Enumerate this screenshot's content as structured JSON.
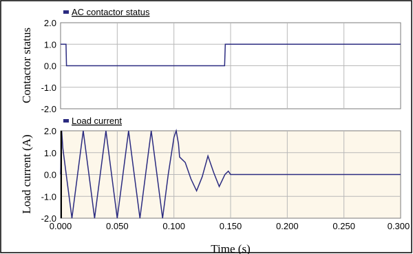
{
  "chart_data": [
    {
      "type": "line",
      "legend": "AC contactor status",
      "ylabel": "Contactor status",
      "ylim": [
        -2.0,
        2.0
      ],
      "yticks": [
        "2.0",
        "1.0",
        "0.0",
        "-1.0",
        "-2.0"
      ],
      "xlim": [
        0,
        0.3
      ],
      "series": [
        {
          "name": "AC contactor status",
          "color": "#2b2b80",
          "x": [
            0.0,
            0.0048,
            0.0052,
            0.1447,
            0.1453,
            0.3
          ],
          "y": [
            1.0,
            1.0,
            0.0,
            0.0,
            1.0,
            1.0
          ]
        }
      ]
    },
    {
      "type": "line",
      "legend": "Load current",
      "ylabel": "Load current (A)",
      "ylim": [
        -2.0,
        2.0
      ],
      "yticks": [
        "2.0",
        "1.0",
        "0.0",
        "-1.0",
        "-2.0"
      ],
      "xlim": [
        0,
        0.3
      ],
      "xlabel": "Time (s)",
      "xticks": [
        "0.000",
        "0.050",
        "0.100",
        "0.150",
        "0.200",
        "0.250",
        "0.300"
      ],
      "shaded_region": [
        0.0,
        0.3
      ],
      "series": [
        {
          "name": "Load current",
          "color": "#2b2b80",
          "x": [
            0.0,
            0.001,
            0.002,
            0.005,
            0.01,
            0.015,
            0.02,
            0.025,
            0.03,
            0.035,
            0.04,
            0.045,
            0.05,
            0.055,
            0.06,
            0.065,
            0.07,
            0.075,
            0.08,
            0.085,
            0.09,
            0.095,
            0.1,
            0.102,
            0.104,
            0.105,
            0.11,
            0.115,
            0.12,
            0.125,
            0.13,
            0.135,
            0.14,
            0.145,
            0.148,
            0.15,
            0.3
          ],
          "y": [
            0.0,
            2.0,
            1.2,
            0.0,
            -2.0,
            0.0,
            2.0,
            0.0,
            -2.0,
            0.0,
            2.0,
            0.0,
            -2.0,
            0.0,
            2.0,
            0.0,
            -2.0,
            0.0,
            2.0,
            0.0,
            -2.0,
            0.0,
            1.7,
            2.0,
            1.4,
            0.8,
            0.55,
            -0.2,
            -0.75,
            -0.1,
            0.85,
            0.1,
            -0.55,
            0.0,
            0.15,
            0.0,
            0.0
          ]
        }
      ]
    }
  ]
}
